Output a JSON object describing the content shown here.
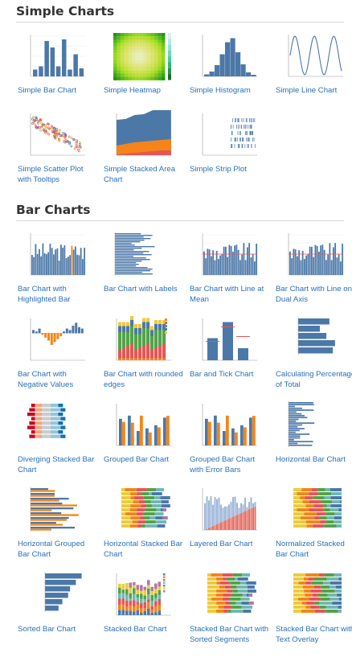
{
  "sections": [
    {
      "title": "Simple Charts",
      "items": [
        {
          "label": "Simple Bar Chart",
          "thumb": "bar"
        },
        {
          "label": "Simple Heatmap",
          "thumb": "heatmap"
        },
        {
          "label": "Simple Histogram",
          "thumb": "histogram"
        },
        {
          "label": "Simple Line Chart",
          "thumb": "sine"
        },
        {
          "label": "Simple Scatter Plot with Tooltips",
          "thumb": "scatter"
        },
        {
          "label": "Simple Stacked Area Chart",
          "thumb": "area"
        },
        {
          "label": "Simple Strip Plot",
          "thumb": "strip"
        }
      ]
    },
    {
      "title": "Bar Charts",
      "items": [
        {
          "label": "Bar Chart with Highlighted Bar",
          "thumb": "bars-many"
        },
        {
          "label": "Bar Chart with Labels",
          "thumb": "hbars-labels"
        },
        {
          "label": "Bar Chart with Line at Mean",
          "thumb": "bars-mean"
        },
        {
          "label": "Bar Chart with Line on Dual Axis",
          "thumb": "bars-mean"
        },
        {
          "label": "Bar Chart with Negative Values",
          "thumb": "negative"
        },
        {
          "label": "Bar Chart with rounded edges",
          "thumb": "stacked-weather"
        },
        {
          "label": "Bar and Tick Chart",
          "thumb": "bar-tick"
        },
        {
          "label": "Calculating Percentage of Total",
          "thumb": "percent"
        },
        {
          "label": "Diverging Stacked Bar Chart",
          "thumb": "diverging"
        },
        {
          "label": "Grouped Bar Chart",
          "thumb": "grouped"
        },
        {
          "label": "Grouped Bar Chart with Error Bars",
          "thumb": "grouped"
        },
        {
          "label": "Horizontal Bar Chart",
          "thumb": "hbars-long"
        },
        {
          "label": "Horizontal Grouped Bar Chart",
          "thumb": "hgrouped"
        },
        {
          "label": "Horizontal Stacked Bar Chart",
          "thumb": "hstacked"
        },
        {
          "label": "Layered Bar Chart",
          "thumb": "layered"
        },
        {
          "label": "Normalized Stacked Bar Chart",
          "thumb": "normalized"
        },
        {
          "label": "Sorted Bar Chart",
          "thumb": "sorted"
        },
        {
          "label": "Stacked Bar Chart",
          "thumb": "stacked-bars"
        },
        {
          "label": "Stacked Bar Chart with Sorted Segments",
          "thumb": "hstacked"
        },
        {
          "label": "Stacked Bar Chart with Text Overlay",
          "thumb": "overlay"
        }
      ]
    }
  ]
}
